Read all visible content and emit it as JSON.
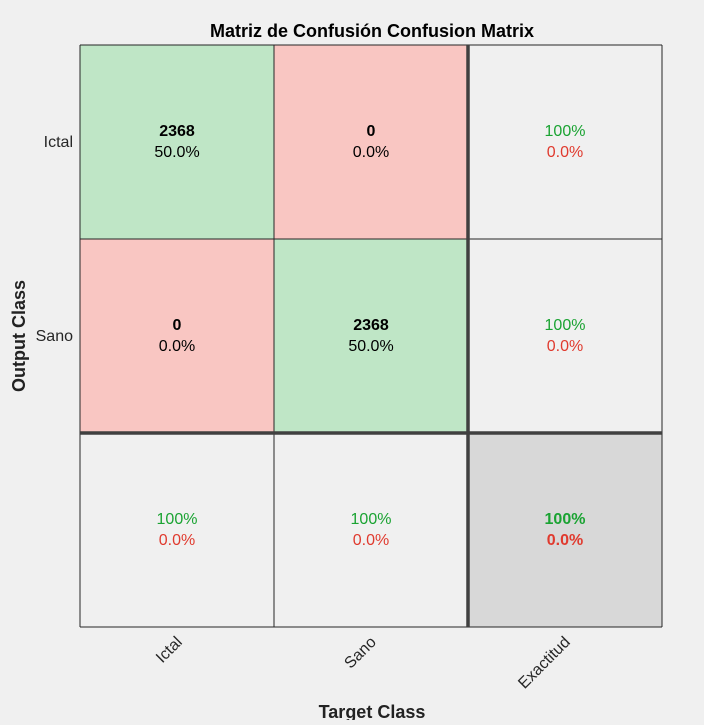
{
  "chart_data": {
    "type": "heatmap",
    "title": "Matriz de Confusión Confusion Matrix",
    "xlabel": "Target Class",
    "ylabel": "Output Class",
    "row_labels": [
      "Ictal",
      "Sano"
    ],
    "col_labels": [
      "Ictal",
      "Sano",
      "Exactitud"
    ],
    "matrix": [
      [
        2368,
        0
      ],
      [
        0,
        2368
      ]
    ],
    "matrix_percent": [
      [
        "50.0%",
        "0.0%"
      ],
      [
        "0.0%",
        "50.0%"
      ]
    ],
    "row_summary": [
      {
        "good": "100%",
        "bad": "0.0%"
      },
      {
        "good": "100%",
        "bad": "0.0%"
      }
    ],
    "col_summary": [
      {
        "good": "100%",
        "bad": "0.0%"
      },
      {
        "good": "100%",
        "bad": "0.0%"
      }
    ],
    "overall": {
      "good": "100%",
      "bad": "0.0%"
    },
    "colors": {
      "correct_cell": "#bfe6c6",
      "incorrect_cell": "#f9c6c2",
      "summary_cell": "#f0f0f0",
      "overall_cell": "#d8d8d8",
      "good_text": "#1aa332",
      "bad_text": "#e03a2e",
      "grid_line": "#262626",
      "thick_line": "#404040"
    }
  }
}
